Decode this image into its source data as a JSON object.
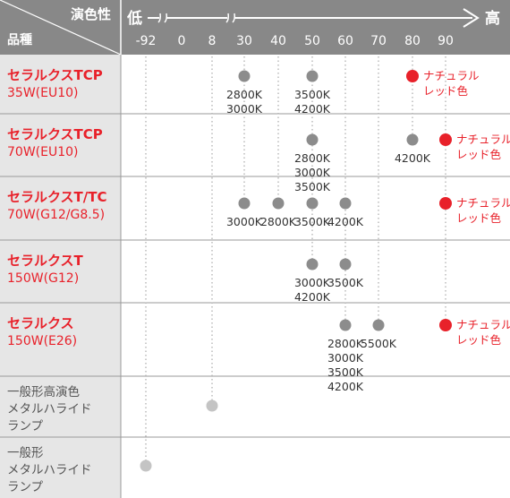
{
  "header": {
    "property_label": "演色性",
    "product_label": "品種",
    "low_label": "低",
    "high_label": "高"
  },
  "chart_data": {
    "type": "scatter",
    "x_ticks": [
      -92,
      0,
      8,
      30,
      40,
      50,
      60,
      70,
      80,
      90
    ],
    "x_tick_labels": [
      "-92",
      "0",
      "8",
      "30",
      "40",
      "50",
      "60",
      "70",
      "80",
      "90"
    ],
    "colors": {
      "gray_dot": "#8c8c8c",
      "light_dot": "#c4c4c4",
      "red_dot": "#e8212a",
      "red_text": "#e8212a",
      "header_bg": "#888888",
      "left_bg": "#e6e6e6"
    },
    "rows": [
      {
        "name_line1": "セラルクスTCP",
        "name_line2": "35W(EU10)",
        "red": true,
        "points": [
          {
            "x": 30,
            "labels": [
              "2800K",
              "3000K"
            ],
            "color": "gray"
          },
          {
            "x": 50,
            "labels": [
              "3500K",
              "4200K"
            ],
            "color": "gray"
          },
          {
            "x": 80,
            "labels": [
              "ナチュラル",
              "レッド色"
            ],
            "color": "red"
          }
        ]
      },
      {
        "name_line1": "セラルクスTCP",
        "name_line2": "70W(EU10)",
        "red": true,
        "points": [
          {
            "x": 50,
            "labels": [
              "2800K",
              "3000K",
              "3500K"
            ],
            "color": "gray"
          },
          {
            "x": 80,
            "labels": [
              "4200K"
            ],
            "color": "gray"
          },
          {
            "x": 90,
            "labels": [
              "ナチュラル",
              "レッド色"
            ],
            "color": "red"
          }
        ]
      },
      {
        "name_line1": "セラルクスT/TC",
        "name_line2": "70W(G12/G8.5)",
        "red": true,
        "points": [
          {
            "x": 30,
            "labels": [
              "3000K"
            ],
            "color": "gray"
          },
          {
            "x": 40,
            "labels": [
              "2800K"
            ],
            "color": "gray"
          },
          {
            "x": 50,
            "labels": [
              "3500K"
            ],
            "color": "gray"
          },
          {
            "x": 60,
            "labels": [
              "4200K"
            ],
            "color": "gray"
          },
          {
            "x": 90,
            "labels": [
              "ナチュラル",
              "レッド色"
            ],
            "color": "red"
          }
        ]
      },
      {
        "name_line1": "セラルクスT",
        "name_line2": "150W(G12)",
        "red": true,
        "points": [
          {
            "x": 50,
            "labels": [
              "3000K",
              "4200K"
            ],
            "color": "gray"
          },
          {
            "x": 60,
            "labels": [
              "3500K"
            ],
            "color": "gray"
          }
        ]
      },
      {
        "name_line1": "セラルクス",
        "name_line2": "150W(E26)",
        "red": true,
        "points": [
          {
            "x": 60,
            "labels": [
              "2800K",
              "3000K",
              "3500K",
              "4200K"
            ],
            "color": "gray"
          },
          {
            "x": 70,
            "labels": [
              "5500K"
            ],
            "color": "gray"
          },
          {
            "x": 90,
            "labels": [
              "ナチュラル",
              "レッド色"
            ],
            "color": "red"
          }
        ]
      },
      {
        "name_line1": "一般形高演色",
        "name_line2": "メタルハライド",
        "name_line3": "ランプ",
        "red": false,
        "points": [
          {
            "x": 8,
            "labels": [],
            "color": "light"
          }
        ]
      },
      {
        "name_line1": "一般形",
        "name_line2": "メタルハライド",
        "name_line3": "ランプ",
        "red": false,
        "points": [
          {
            "x": -92,
            "labels": [],
            "color": "light"
          }
        ]
      }
    ]
  }
}
